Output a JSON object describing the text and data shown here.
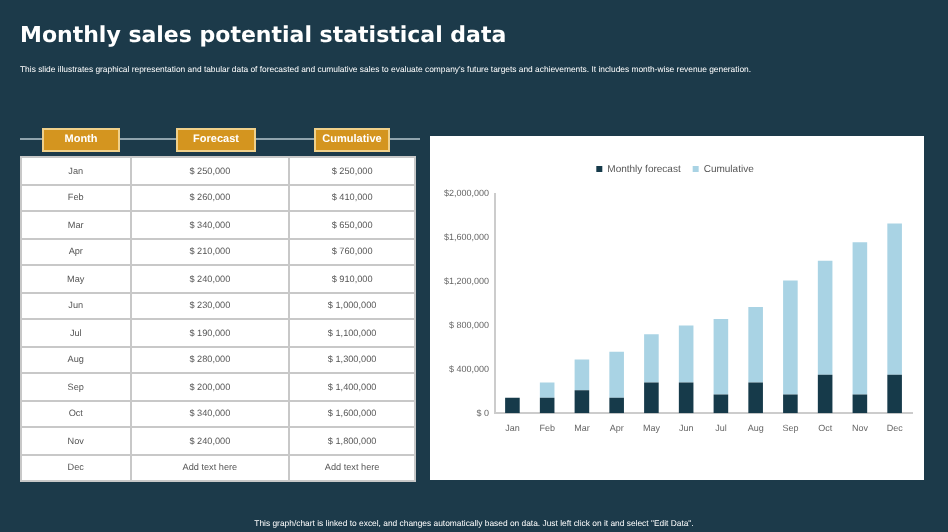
{
  "chart_data": [
    {
      "type": "other",
      "title": "Monthly sales potential statistical data",
      "subtitle": "This slide illustrates graphical representation and tabular data of forecasted and cumulative sales to evaluate company's future targets and achievements. It includes month-wise revenue generation.",
      "xlabel": "Month",
      "categories": [
        "Jan",
        "Feb",
        "Mar",
        "Apr",
        "May",
        "Jun",
        "Jul",
        "Aug",
        "Sep",
        "Oct",
        "Nov",
        "Dec"
      ],
      "series": [
        {
          "name": "Forecast",
          "values": [
            250000,
            260000,
            340000,
            210000,
            240000,
            230000,
            190000,
            280000,
            200000,
            340000,
            240000,
            null
          ],
          "value_labels": [
            "$ 250,000",
            "$ 260,000",
            "$ 340,000",
            "$ 210,000",
            "$ 240,000",
            "$ 230,000",
            "$ 190,000",
            "$ 280,000",
            "$ 200,000",
            "$ 340,000",
            "$ 240,000",
            "Add text here"
          ]
        },
        {
          "name": "Cumulative",
          "values": [
            250000,
            410000,
            650000,
            760000,
            910000,
            1000000,
            1100000,
            1300000,
            1400000,
            1600000,
            1800000,
            null
          ],
          "value_labels": [
            "$ 250,000",
            "$ 410,000",
            "$ 650,000",
            "$ 760,000",
            "$ 910,000",
            "$ 1,000,000",
            "$ 1,100,000",
            "$ 1,300,000",
            "$ 1,400,000",
            "$ 1,600,000",
            "$ 1,800,000",
            "Add text here"
          ]
        }
      ]
    },
    {
      "type": "bar",
      "stacked": true,
      "legend": "top",
      "grid": false,
      "categories": [
        "Jan",
        "Feb",
        "Mar",
        "Apr",
        "May",
        "Jun",
        "Jul",
        "Aug",
        "Sep",
        "Oct",
        "Nov",
        "Dec"
      ],
      "series": [
        {
          "name": "Monthly forecast",
          "color": "#163a4a",
          "values": [
            140000,
            140000,
            210000,
            140000,
            280000,
            280000,
            170000,
            280000,
            170000,
            350000,
            170000,
            350000
          ]
        },
        {
          "name": "Cumulative",
          "color": "#a9d3e4",
          "values": [
            0,
            140000,
            280000,
            420000,
            440000,
            520000,
            690000,
            690000,
            1040000,
            1040000,
            1390000,
            1380000
          ]
        }
      ],
      "ylim": [
        0,
        2000000
      ],
      "yticks": [
        {
          "value": 0,
          "label": "$ 0"
        },
        {
          "value": 400000,
          "label": "$ 400,000"
        },
        {
          "value": 800000,
          "label": "$ 800,000"
        },
        {
          "value": 1200000,
          "label": "$1,200,000"
        },
        {
          "value": 1600000,
          "label": "$1,600,000"
        },
        {
          "value": 2000000,
          "label": "$2,000,000"
        }
      ],
      "annotations": [
        "This graph/chart is linked to excel, and changes automatically based on data. Just left click on it and select \"Edit Data\"."
      ]
    }
  ]
}
